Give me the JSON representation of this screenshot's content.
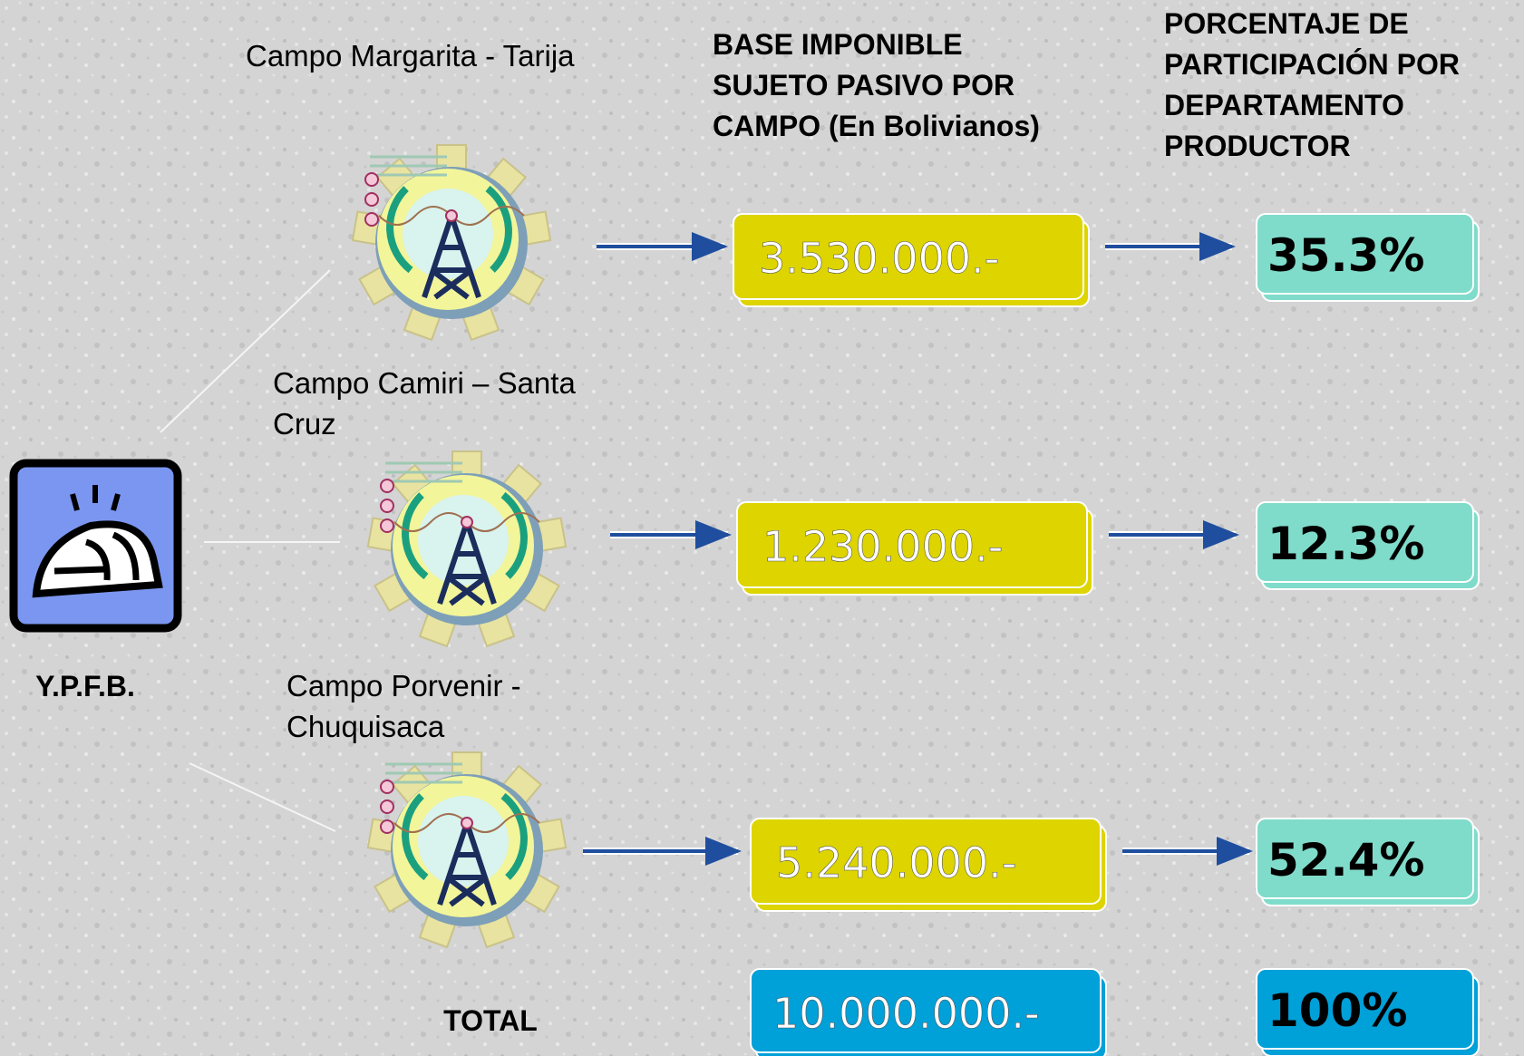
{
  "headers": {
    "base": [
      "BASE IMPONIBLE",
      "SUJETO PASIVO POR",
      "CAMPO (En Bolivianos)"
    ],
    "percent": [
      "PORCENTAJE DE",
      "PARTICIPACIÓN POR",
      "DEPARTAMENTO",
      "PRODUCTOR"
    ]
  },
  "company": "Y.P.F.B.",
  "fields": [
    {
      "label_lines": [
        "Campo Margarita - Tarija"
      ],
      "base": "3.530.000.-",
      "percent": "35.3%"
    },
    {
      "label_lines": [
        "Campo Camiri – Santa",
        "Cruz"
      ],
      "base": "1.230.000.-",
      "percent": "12.3%"
    },
    {
      "label_lines": [
        "Campo Porvenir -",
        "Chuquisaca"
      ],
      "base": "5.240.000.-",
      "percent": "52.4%"
    }
  ],
  "total": {
    "label": "TOTAL",
    "base": "10.000.000.-",
    "percent": "100%"
  }
}
